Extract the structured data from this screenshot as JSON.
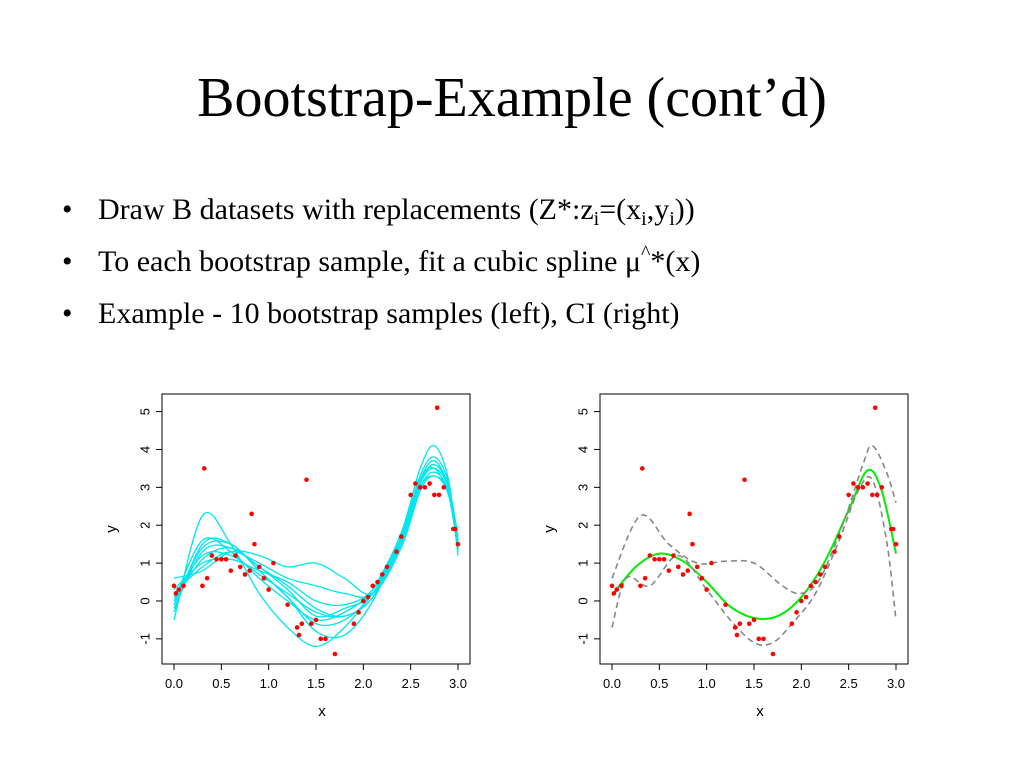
{
  "slide": {
    "title": "Bootstrap-Example (cont’d)",
    "bullets": [
      {
        "bullet": "•",
        "parts": [
          {
            "text": "Draw B datasets with replacements (Z*:z"
          },
          {
            "sub": "i"
          },
          {
            "text": "=(x"
          },
          {
            "sub": "i"
          },
          {
            "text": ",y"
          },
          {
            "sub": "i"
          },
          {
            "text": "))"
          }
        ]
      },
      {
        "bullet": "•",
        "parts": [
          {
            "text": "To each bootstrap sample, fit a cubic spline  μ"
          },
          {
            "sup": "^"
          },
          {
            "text": "*(x)"
          }
        ]
      },
      {
        "bullet": "•",
        "parts": [
          {
            "text": "Example - 10 bootstrap samples (left), CI (right)"
          }
        ]
      }
    ]
  },
  "chart_data": [
    {
      "type": "scatter",
      "xlabel": "x",
      "ylabel": "y",
      "xlim": [
        0,
        3
      ],
      "ylim": [
        -1.4,
        5.2
      ],
      "xticks": [
        "0.0",
        "0.5",
        "1.0",
        "1.5",
        "2.0",
        "2.5",
        "3.0"
      ],
      "yticks": [
        "-1",
        "0",
        "1",
        "2",
        "3",
        "4",
        "5"
      ],
      "points": {
        "color": "#ff0000",
        "x": [
          0.0,
          0.02,
          0.05,
          0.1,
          0.3,
          0.32,
          0.35,
          0.4,
          0.45,
          0.5,
          0.55,
          0.6,
          0.65,
          0.7,
          0.75,
          0.8,
          0.82,
          0.85,
          0.9,
          0.95,
          1.0,
          1.05,
          1.2,
          1.3,
          1.32,
          1.35,
          1.4,
          1.45,
          1.5,
          1.55,
          1.6,
          1.7,
          1.9,
          1.95,
          2.0,
          2.05,
          2.1,
          2.15,
          2.2,
          2.25,
          2.35,
          2.4,
          2.5,
          2.55,
          2.6,
          2.65,
          2.7,
          2.75,
          2.78,
          2.8,
          2.85,
          2.95,
          2.97,
          3.0
        ],
        "y": [
          0.4,
          0.2,
          0.3,
          0.4,
          0.4,
          3.5,
          0.6,
          1.2,
          1.1,
          1.1,
          1.1,
          0.8,
          1.2,
          0.9,
          0.7,
          0.8,
          2.3,
          1.5,
          0.9,
          0.6,
          0.3,
          1.0,
          -0.1,
          -0.7,
          -0.9,
          -0.6,
          3.2,
          -0.6,
          -0.5,
          -1.0,
          -1.0,
          -1.4,
          -0.6,
          -0.3,
          0.0,
          0.1,
          0.4,
          0.5,
          0.7,
          0.9,
          1.3,
          1.7,
          2.8,
          3.1,
          3.0,
          3.0,
          3.1,
          2.8,
          5.1,
          2.8,
          3.0,
          1.9,
          1.9,
          1.5
        ]
      },
      "series": [
        {
          "color": "#00e5ee",
          "x": [
            0,
            0.3,
            0.6,
            0.9,
            1.2,
            1.5,
            1.8,
            2.1,
            2.4,
            2.6,
            2.75,
            2.9,
            3.0
          ],
          "y": [
            -0.5,
            2.25,
            1.5,
            0.2,
            -0.7,
            -1.2,
            -0.7,
            0.3,
            1.8,
            3.5,
            4.1,
            3.2,
            1.2
          ]
        },
        {
          "color": "#00e5ee",
          "x": [
            0,
            0.3,
            0.6,
            0.9,
            1.2,
            1.5,
            1.8,
            2.1,
            2.4,
            2.6,
            2.75,
            2.9,
            3.0
          ],
          "y": [
            0.6,
            0.8,
            1.3,
            1.2,
            0.9,
            1.0,
            0.6,
            0.2,
            1.4,
            2.9,
            3.3,
            2.8,
            1.3
          ]
        },
        {
          "color": "#00e5ee",
          "x": [
            0,
            0.3,
            0.6,
            0.9,
            1.2,
            1.5,
            1.8,
            2.1,
            2.4,
            2.6,
            2.75,
            2.9,
            3.0
          ],
          "y": [
            -0.3,
            1.5,
            1.5,
            0.8,
            0.1,
            -0.6,
            -0.5,
            0.2,
            1.6,
            3.1,
            3.6,
            3.0,
            1.4
          ]
        },
        {
          "color": "#00e5ee",
          "x": [
            0,
            0.3,
            0.6,
            0.9,
            1.2,
            1.5,
            1.8,
            2.1,
            2.4,
            2.6,
            2.75,
            2.9,
            3.0
          ],
          "y": [
            -0.2,
            1.3,
            1.4,
            0.9,
            0.4,
            -0.2,
            -0.4,
            0.1,
            1.5,
            3.0,
            3.4,
            2.9,
            1.5
          ]
        },
        {
          "color": "#00e5ee",
          "x": [
            0,
            0.3,
            0.6,
            0.9,
            1.2,
            1.5,
            1.8,
            2.1,
            2.4,
            2.6,
            2.75,
            2.9,
            3.0
          ],
          "y": [
            0.0,
            1.6,
            1.3,
            0.6,
            0.0,
            -0.5,
            -0.3,
            0.3,
            1.7,
            3.2,
            3.7,
            3.0,
            1.6
          ]
        },
        {
          "color": "#00e5ee",
          "x": [
            0,
            0.3,
            0.6,
            0.9,
            1.2,
            1.5,
            1.8,
            2.1,
            2.4,
            2.6,
            2.75,
            2.9,
            3.0
          ],
          "y": [
            0.1,
            1.2,
            1.2,
            0.7,
            0.2,
            -0.3,
            -0.4,
            0.1,
            1.6,
            3.2,
            3.5,
            2.8,
            1.4
          ]
        },
        {
          "color": "#00e5ee",
          "x": [
            0,
            0.3,
            0.6,
            0.9,
            1.2,
            1.5,
            1.8,
            2.1,
            2.4,
            2.6,
            2.75,
            2.9,
            3.0
          ],
          "y": [
            0.2,
            0.9,
            1.3,
            1.0,
            0.6,
            0.4,
            0.2,
            0.2,
            1.5,
            3.0,
            3.3,
            2.9,
            1.6
          ]
        },
        {
          "color": "#00e5ee",
          "x": [
            0,
            0.3,
            0.6,
            0.9,
            1.2,
            1.5,
            1.8,
            2.1,
            2.4,
            2.6,
            2.75,
            2.9,
            3.0
          ],
          "y": [
            -0.1,
            1.4,
            1.5,
            0.8,
            0.1,
            -0.8,
            -0.9,
            0.0,
            1.7,
            3.3,
            3.8,
            3.1,
            1.3
          ]
        },
        {
          "color": "#00e5ee",
          "x": [
            0,
            0.3,
            0.6,
            0.9,
            1.2,
            1.5,
            1.8,
            2.1,
            2.4,
            2.6,
            2.75,
            2.9,
            3.0
          ],
          "y": [
            0.3,
            1.0,
            1.1,
            0.8,
            0.5,
            0.0,
            -0.1,
            0.3,
            1.6,
            3.1,
            3.5,
            3.0,
            1.7
          ]
        },
        {
          "color": "#00e5ee",
          "x": [
            0,
            0.3,
            0.6,
            0.9,
            1.2,
            1.5,
            1.8,
            2.1,
            2.4,
            2.6,
            2.75,
            2.9,
            3.0
          ],
          "y": [
            0.0,
            1.1,
            1.4,
            0.9,
            0.3,
            -0.4,
            -0.2,
            0.2,
            1.6,
            3.1,
            3.6,
            3.0,
            1.5
          ]
        }
      ]
    },
    {
      "type": "scatter",
      "xlabel": "x",
      "ylabel": "y",
      "xlim": [
        0,
        3
      ],
      "ylim": [
        -1.4,
        5.2
      ],
      "xticks": [
        "0.0",
        "0.5",
        "1.0",
        "1.5",
        "2.0",
        "2.5",
        "3.0"
      ],
      "yticks": [
        "-1",
        "0",
        "1",
        "2",
        "3",
        "4",
        "5"
      ],
      "points": {
        "color": "#ff0000",
        "x": [
          0.0,
          0.02,
          0.05,
          0.1,
          0.3,
          0.32,
          0.35,
          0.4,
          0.45,
          0.5,
          0.55,
          0.6,
          0.65,
          0.7,
          0.75,
          0.8,
          0.82,
          0.85,
          0.9,
          0.95,
          1.0,
          1.05,
          1.2,
          1.3,
          1.32,
          1.35,
          1.4,
          1.45,
          1.5,
          1.55,
          1.6,
          1.7,
          1.9,
          1.95,
          2.0,
          2.05,
          2.1,
          2.15,
          2.2,
          2.25,
          2.35,
          2.4,
          2.5,
          2.55,
          2.6,
          2.65,
          2.7,
          2.75,
          2.78,
          2.8,
          2.85,
          2.95,
          2.97,
          3.0
        ],
        "y": [
          0.4,
          0.2,
          0.3,
          0.4,
          0.4,
          3.5,
          0.6,
          1.2,
          1.1,
          1.1,
          1.1,
          0.8,
          1.2,
          0.9,
          0.7,
          0.8,
          2.3,
          1.5,
          0.9,
          0.6,
          0.3,
          1.0,
          -0.1,
          -0.7,
          -0.9,
          -0.6,
          3.2,
          -0.6,
          -0.5,
          -1.0,
          -1.0,
          -1.4,
          -0.6,
          -0.3,
          0.0,
          0.1,
          0.4,
          0.5,
          0.7,
          0.9,
          1.3,
          1.7,
          2.8,
          3.1,
          3.0,
          3.0,
          3.1,
          2.8,
          5.1,
          2.8,
          3.0,
          1.9,
          1.9,
          1.5
        ]
      },
      "series": [
        {
          "color": "#00ee00",
          "style": "solid",
          "x": [
            0,
            0.25,
            0.5,
            0.75,
            1.0,
            1.25,
            1.5,
            1.75,
            2.0,
            2.25,
            2.5,
            2.7,
            2.85,
            3.0
          ],
          "y": [
            0.15,
            0.9,
            1.25,
            1.05,
            0.5,
            -0.15,
            -0.45,
            -0.4,
            0.1,
            1.05,
            2.4,
            3.45,
            2.9,
            1.25
          ]
        },
        {
          "color": "#888888",
          "style": "dashed",
          "x": [
            0,
            0.3,
            0.6,
            0.9,
            1.2,
            1.5,
            1.8,
            2.0,
            2.2,
            2.45,
            2.65,
            2.75,
            2.9,
            3.0
          ],
          "y": [
            0.6,
            2.25,
            1.5,
            1.0,
            1.05,
            1.0,
            0.4,
            0.2,
            0.6,
            2.1,
            3.6,
            4.1,
            3.4,
            2.6
          ]
        },
        {
          "color": "#888888",
          "style": "dashed",
          "x": [
            0,
            0.15,
            0.4,
            0.7,
            1.0,
            1.25,
            1.5,
            1.7,
            1.9,
            2.15,
            2.4,
            2.6,
            2.75,
            2.9,
            3.0
          ],
          "y": [
            -0.7,
            0.6,
            0.4,
            1.2,
            0.3,
            -0.5,
            -1.1,
            -1.1,
            -0.6,
            0.2,
            1.6,
            2.9,
            3.2,
            1.6,
            -0.5
          ]
        }
      ]
    }
  ]
}
